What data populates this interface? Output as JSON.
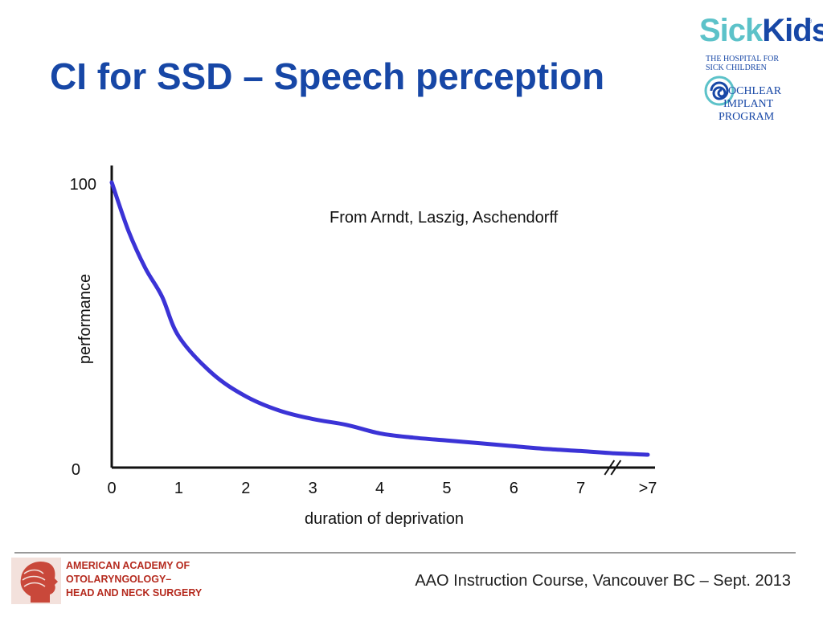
{
  "slide": {
    "title": "CI for SSD – Speech perception",
    "footer": "AAO Instruction Course, Vancouver BC – Sept. 2013"
  },
  "logos": {
    "sickkids": {
      "word_sick": "Sick",
      "word_kids": "Kids",
      "registered": "®",
      "subtitle_line1": "THE HOSPITAL FOR",
      "subtitle_line2": "SICK CHILDREN",
      "program_line1": "OCHLEAR",
      "program_line2": "IMPLANT",
      "program_line3": "PROGRAM"
    },
    "aao": {
      "line1": "AMERICAN ACADEMY OF",
      "line2": "OTOLARYNGOLOGY–",
      "line3": "HEAD AND NECK SURGERY"
    }
  },
  "colors": {
    "title": "#1747a6",
    "curve": "#3b33d6",
    "axis": "#111111",
    "aao_red": "#b52a1e",
    "sickkids_teal": "#5cc2c9"
  },
  "chart_data": {
    "type": "line",
    "annotation": "From Arndt, Laszig, Aschendorff",
    "xlabel": "duration of deprivation",
    "ylabel": "performance",
    "x_tick_labels": [
      "0",
      "1",
      "2",
      "3",
      "4",
      "5",
      "6",
      "7",
      ">7"
    ],
    "y_tick_labels": [
      "0",
      "100"
    ],
    "ylim": [
      0,
      100
    ],
    "xlim": [
      0,
      8
    ],
    "axis_break": "between 7 and >7",
    "grid": false,
    "legend": "none",
    "series": [
      {
        "x": [
          0,
          0.25,
          0.5,
          0.75,
          1,
          1.5,
          2,
          2.5,
          3,
          3.5,
          4,
          4.5,
          5,
          5.5,
          6,
          6.5,
          7,
          7.5,
          8
        ],
        "y": [
          100,
          83,
          70,
          60,
          46,
          33,
          25,
          20,
          17,
          15,
          12,
          10.5,
          9.5,
          8.5,
          7.5,
          6.5,
          5.8,
          5,
          4.5
        ]
      }
    ]
  }
}
